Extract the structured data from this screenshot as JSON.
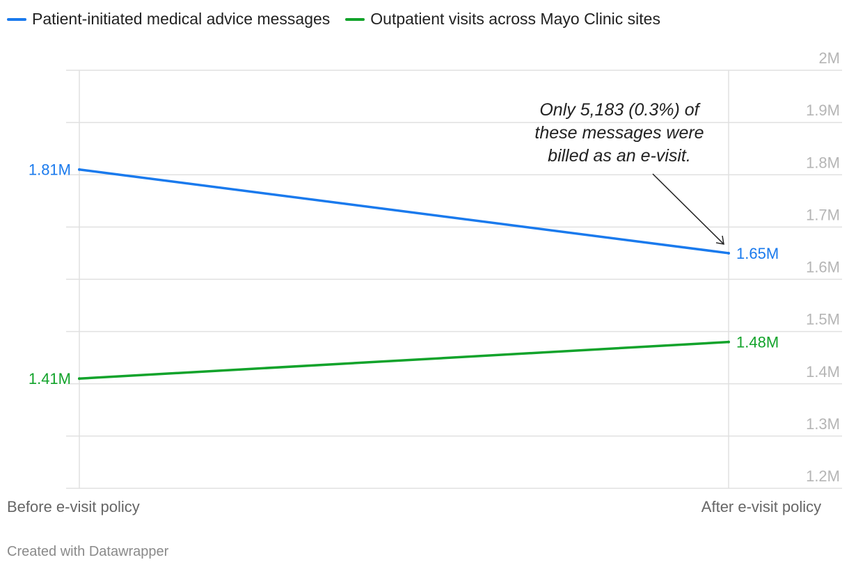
{
  "chart_data": {
    "type": "line",
    "categories": [
      "Before e-visit policy",
      "After e-visit policy"
    ],
    "series": [
      {
        "name": "Patient-initiated medical advice messages",
        "values": [
          1.81,
          1.65
        ],
        "labels": [
          "1.81M",
          "1.65M"
        ],
        "color": "#1a7aed"
      },
      {
        "name": "Outpatient visits across Mayo Clinic sites",
        "values": [
          1.41,
          1.48
        ],
        "labels": [
          "1.41M",
          "1.48M"
        ],
        "color": "#12a32b"
      }
    ],
    "y_unit": "M",
    "ylim": [
      1.2,
      2.0
    ],
    "yticks": [
      2.0,
      1.9,
      1.8,
      1.7,
      1.6,
      1.5,
      1.4,
      1.3,
      1.2
    ],
    "ytick_labels": [
      "2M",
      "1.9M",
      "1.8M",
      "1.7M",
      "1.6M",
      "1.5M",
      "1.4M",
      "1.3M",
      "1.2M"
    ],
    "grid": true,
    "legend_position": "top-left",
    "annotation": {
      "lines": [
        "Only 5,183 (0.3%) of",
        "these messages were",
        "billed as an e-visit."
      ],
      "target_series": 0,
      "target_category": 1
    }
  },
  "footer": "Created with Datawrapper"
}
